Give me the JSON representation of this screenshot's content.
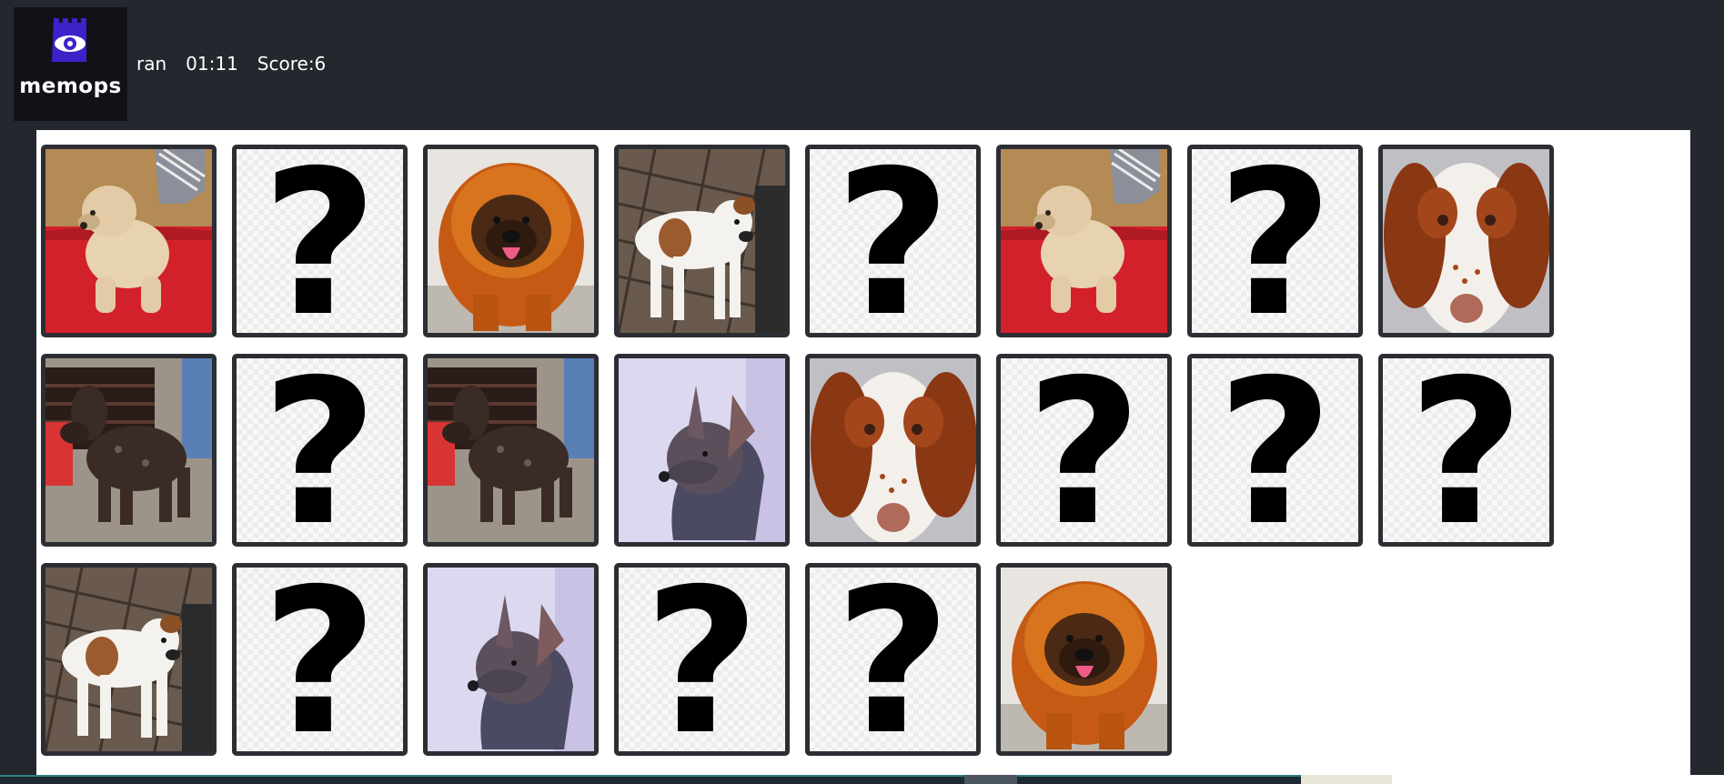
{
  "app": {
    "logo_text": "memops",
    "logo_icon": "eye-castle-icon"
  },
  "status": {
    "player": "ran",
    "timer": "01:11",
    "score": "Score:6"
  },
  "colors": {
    "background": "#23272e",
    "board": "#ffffff",
    "card_border": "#2c2e33",
    "logo_accent": "#3b22c9"
  },
  "cards": [
    {
      "state": "revealed",
      "dog": "wheaten-terrier"
    },
    {
      "state": "hidden",
      "symbol": "?"
    },
    {
      "state": "revealed",
      "dog": "tibetan-mastiff"
    },
    {
      "state": "revealed",
      "dog": "white-brown-pitbull"
    },
    {
      "state": "hidden",
      "symbol": "?"
    },
    {
      "state": "revealed",
      "dog": "wheaten-terrier"
    },
    {
      "state": "hidden",
      "symbol": "?"
    },
    {
      "state": "revealed",
      "dog": "brittany-spaniel"
    },
    {
      "state": "revealed",
      "dog": "kerry-blue-terrier"
    },
    {
      "state": "hidden",
      "symbol": "?"
    },
    {
      "state": "revealed",
      "dog": "kerry-blue-terrier"
    },
    {
      "state": "revealed",
      "dog": "hairless-xolo"
    },
    {
      "state": "revealed",
      "dog": "brittany-spaniel"
    },
    {
      "state": "hidden",
      "symbol": "?"
    },
    {
      "state": "hidden",
      "symbol": "?"
    },
    {
      "state": "hidden",
      "symbol": "?"
    },
    {
      "state": "revealed",
      "dog": "white-brown-pitbull"
    },
    {
      "state": "hidden",
      "symbol": "?"
    },
    {
      "state": "revealed",
      "dog": "hairless-xolo"
    },
    {
      "state": "hidden",
      "symbol": "?"
    },
    {
      "state": "hidden",
      "symbol": "?"
    },
    {
      "state": "revealed",
      "dog": "tibetan-mastiff"
    }
  ]
}
